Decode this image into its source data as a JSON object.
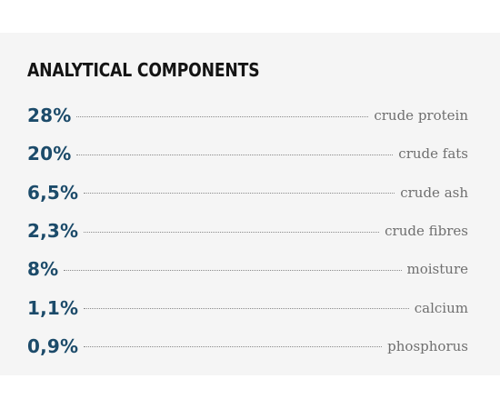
{
  "section": {
    "title": "ANALYTICAL COMPONENTS",
    "components": [
      {
        "value": "28%",
        "label": "crude protein"
      },
      {
        "value": "20%",
        "label": "crude fats"
      },
      {
        "value": "6,5%",
        "label": "crude ash"
      },
      {
        "value": "2,3%",
        "label": "crude fibres"
      },
      {
        "value": "8%",
        "label": "moisture"
      },
      {
        "value": "1,1%",
        "label": "calcium"
      },
      {
        "value": "0,9%",
        "label": "phosphorus"
      }
    ]
  },
  "colors": {
    "value": "#1c4b6a",
    "label": "#6f6f6f",
    "panel": "#f5f5f5"
  }
}
